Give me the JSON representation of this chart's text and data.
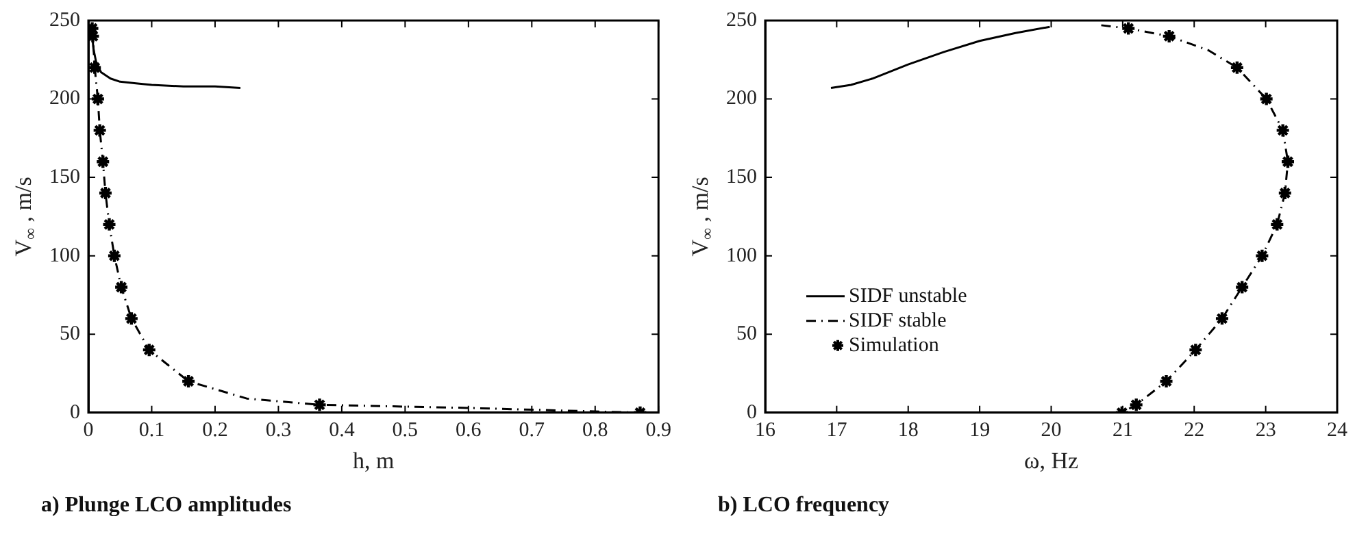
{
  "chart_data": [
    {
      "type": "line",
      "title": "a) Plunge LCO amplitudes",
      "xlabel": "h, m",
      "ylabel": "V$_{∞}$ , m/s",
      "xlim": [
        0,
        0.9
      ],
      "xticks": [
        0,
        0.1,
        0.2,
        0.3,
        0.4,
        0.5,
        0.6,
        0.7,
        0.8,
        0.9
      ],
      "ylim": [
        0,
        250
      ],
      "yticks": [
        0,
        50,
        100,
        150,
        200,
        250
      ],
      "grid": false,
      "legend": false,
      "series": [
        {
          "type": "line",
          "color": "#000000",
          "line_style": "solid",
          "marker": "none",
          "x": [
            0.005,
            0.008,
            0.012,
            0.02,
            0.035,
            0.05,
            0.075,
            0.1,
            0.15,
            0.2,
            0.24
          ],
          "values": [
            245,
            232,
            224,
            217,
            213,
            211,
            210,
            209,
            208,
            208,
            207
          ]
        },
        {
          "type": "line",
          "color": "#000000",
          "line_style": "dashed",
          "marker": "none",
          "x": [
            0.005,
            0.006,
            0.007,
            0.01,
            0.015,
            0.018,
            0.023,
            0.027,
            0.033,
            0.041,
            0.052,
            0.068,
            0.096,
            0.158,
            0.25,
            0.365,
            0.6,
            0.871
          ],
          "values": [
            248,
            245,
            240,
            220,
            200,
            180,
            160,
            140,
            120,
            100,
            80,
            60,
            40,
            20,
            9,
            5,
            3,
            0
          ]
        },
        {
          "type": "scatter",
          "color": "#000000",
          "marker": "cross",
          "x": [
            0.006,
            0.007,
            0.01,
            0.015,
            0.018,
            0.023,
            0.027,
            0.033,
            0.041,
            0.052,
            0.068,
            0.096,
            0.158,
            0.365,
            0.871
          ],
          "values": [
            245,
            240,
            220,
            200,
            180,
            160,
            140,
            120,
            100,
            80,
            60,
            40,
            20,
            5,
            0
          ]
        }
      ]
    },
    {
      "type": "line",
      "title": "b) LCO frequency",
      "xlabel": "ω, Hz",
      "ylabel": "V$_{∞}$ , m/s",
      "xlim": [
        16,
        24
      ],
      "xticks": [
        16,
        17,
        18,
        19,
        20,
        21,
        22,
        23,
        24
      ],
      "ylim": [
        0,
        250
      ],
      "yticks": [
        0,
        50,
        100,
        150,
        200,
        250
      ],
      "grid": false,
      "legend": "bottom left",
      "series": [
        {
          "type": "line",
          "name": "SIDF unstable",
          "color": "#000000",
          "line_style": "solid",
          "marker": "none",
          "x": [
            16.92,
            17.2,
            17.5,
            18,
            18.5,
            19,
            19.5,
            19.98
          ],
          "values": [
            207,
            209,
            213,
            222,
            230,
            237,
            242,
            246
          ]
        },
        {
          "type": "line",
          "name": "SIDF stable",
          "color": "#000000",
          "line_style": "dashed",
          "marker": "none",
          "x": [
            20.7,
            21.08,
            21.65,
            22.2,
            22.6,
            23.01,
            23.24,
            23.31,
            23.27,
            23.16,
            22.95,
            22.67,
            22.39,
            22.02,
            21.61,
            21.19,
            20.99
          ],
          "values": [
            247,
            245,
            240,
            231,
            220,
            200,
            180,
            160,
            140,
            120,
            100,
            80,
            60,
            40,
            20,
            5,
            0
          ]
        },
        {
          "type": "scatter",
          "name": "Simulation",
          "color": "#000000",
          "marker": "cross",
          "x": [
            21.08,
            21.65,
            22.6,
            23.01,
            23.24,
            23.31,
            23.27,
            23.16,
            22.95,
            22.67,
            22.39,
            22.02,
            21.61,
            21.19,
            20.99
          ],
          "values": [
            245,
            240,
            220,
            200,
            180,
            160,
            140,
            120,
            100,
            80,
            60,
            40,
            20,
            5,
            0
          ]
        }
      ]
    }
  ]
}
